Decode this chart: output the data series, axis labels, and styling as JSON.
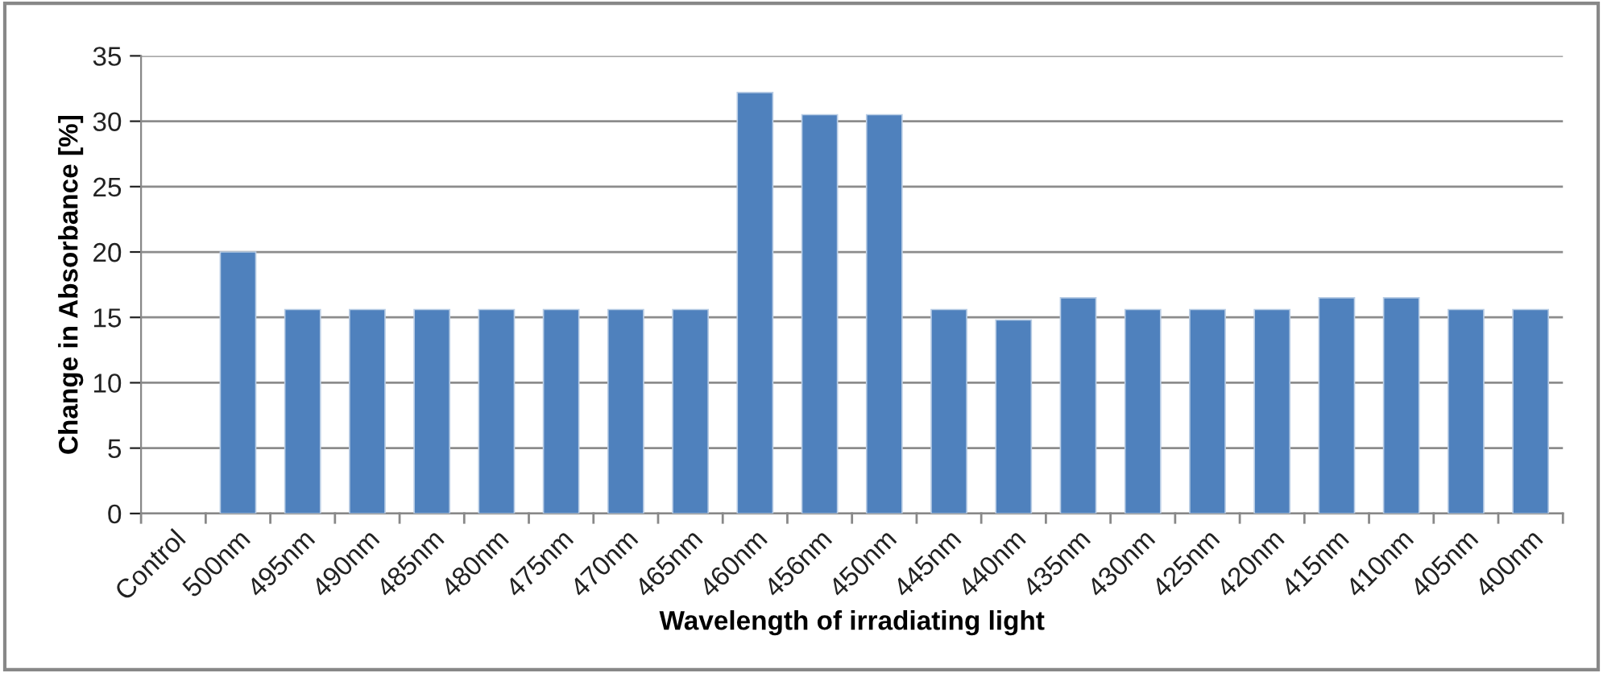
{
  "chart_data": {
    "type": "bar",
    "xlabel": "Wavelength of irradiating light",
    "ylabel": "Change in Absorbance [%]",
    "categories": [
      "Control",
      "500nm",
      "495nm",
      "490nm",
      "485nm",
      "480nm",
      "475nm",
      "470nm",
      "465nm",
      "460nm",
      "456nm",
      "450nm",
      "445nm",
      "440nm",
      "435nm",
      "430nm",
      "425nm",
      "420nm",
      "415nm",
      "410nm",
      "405nm",
      "400nm"
    ],
    "values": [
      null,
      20.0,
      15.6,
      15.6,
      15.6,
      15.6,
      15.6,
      15.6,
      15.6,
      32.2,
      30.5,
      30.5,
      15.6,
      14.8,
      16.5,
      15.6,
      15.6,
      15.6,
      16.5,
      16.5,
      15.6,
      15.6
    ],
    "color": "#4f81bd",
    "ylim": [
      0,
      35
    ],
    "yticks": [
      0,
      5,
      10,
      15,
      20,
      25,
      30,
      35
    ],
    "grid": "y",
    "legend": false
  }
}
